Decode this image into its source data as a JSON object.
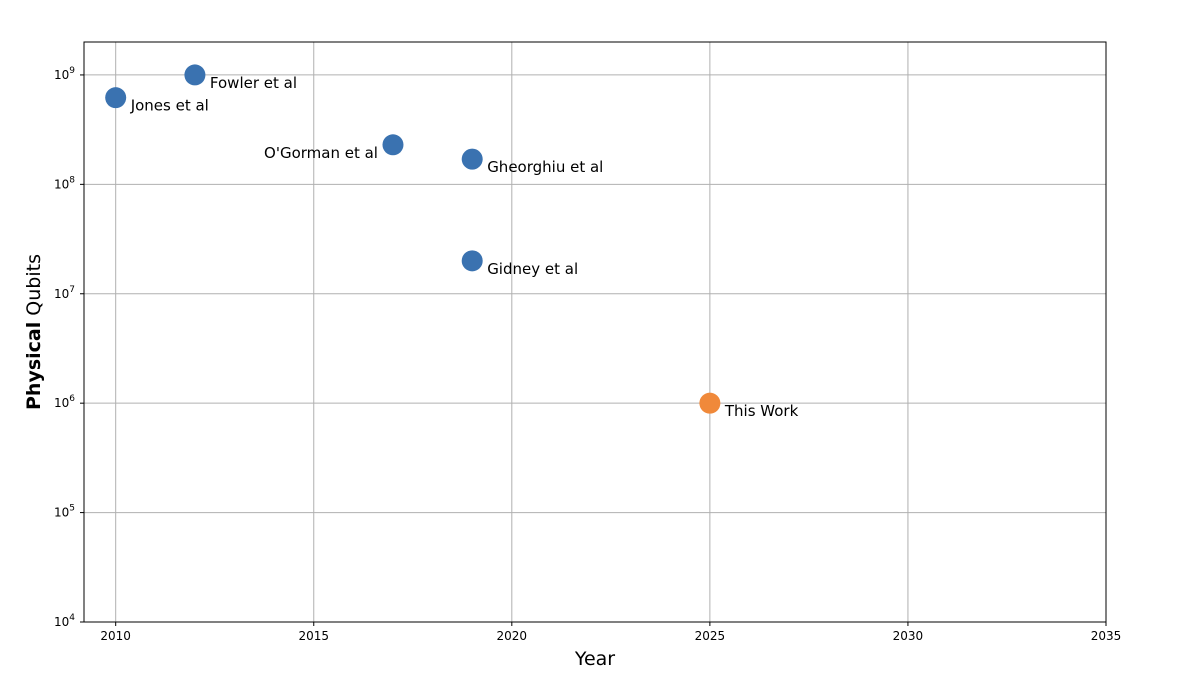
{
  "chart_data": {
    "type": "scatter",
    "xlabel": "Year",
    "ylabel_bold": "Physical",
    "ylabel_rest": " Qubits",
    "y_scale": "log",
    "xlim": [
      2009.2,
      2035
    ],
    "ylim": [
      10000,
      2000000000
    ],
    "grid": true,
    "x_ticks": [
      2010,
      2015,
      2020,
      2025,
      2030,
      2035
    ],
    "y_ticks": [
      {
        "value": 10000,
        "base": "10",
        "exp": "4"
      },
      {
        "value": 100000,
        "base": "10",
        "exp": "5"
      },
      {
        "value": 1000000,
        "base": "10",
        "exp": "6"
      },
      {
        "value": 10000000,
        "base": "10",
        "exp": "7"
      },
      {
        "value": 100000000,
        "base": "10",
        "exp": "8"
      },
      {
        "value": 1000000000,
        "base": "10",
        "exp": "9"
      }
    ],
    "points": [
      {
        "label": "Jones et al",
        "x": 2010,
        "y": 620000000,
        "color": "#3a72b0",
        "label_side": "right"
      },
      {
        "label": "Fowler et al",
        "x": 2012,
        "y": 1000000000,
        "color": "#3a72b0",
        "label_side": "right"
      },
      {
        "label": "O'Gorman et al",
        "x": 2017,
        "y": 230000000,
        "color": "#3a72b0",
        "label_side": "left"
      },
      {
        "label": "Gheorghiu et al",
        "x": 2019,
        "y": 170000000,
        "color": "#3a72b0",
        "label_side": "right"
      },
      {
        "label": "Gidney et al",
        "x": 2019,
        "y": 20000000,
        "color": "#3a72b0",
        "label_side": "right"
      },
      {
        "label": "This Work",
        "x": 2025,
        "y": 1000000,
        "color": "#f0893a",
        "label_side": "right"
      }
    ]
  }
}
